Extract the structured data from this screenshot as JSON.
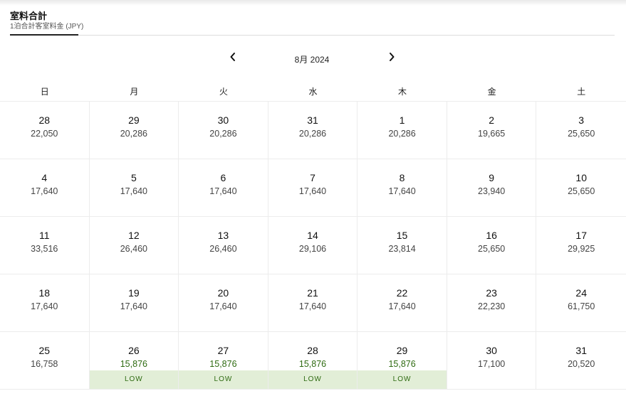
{
  "tab": {
    "title": "室料合計",
    "subtitle": "1泊合計客室料金 (JPY)"
  },
  "calendar": {
    "month_label": "8月 2024",
    "prev_icon": "chevron-left-icon",
    "next_icon": "chevron-right-icon",
    "weekdays": [
      "日",
      "月",
      "火",
      "水",
      "木",
      "金",
      "土"
    ],
    "low_label": "LOW",
    "low_color": "#2f6b12",
    "low_bg": "#e2eed7",
    "days": [
      {
        "day": "28",
        "price": "22,050"
      },
      {
        "day": "29",
        "price": "20,286"
      },
      {
        "day": "30",
        "price": "20,286"
      },
      {
        "day": "31",
        "price": "20,286"
      },
      {
        "day": "1",
        "price": "20,286"
      },
      {
        "day": "2",
        "price": "19,665"
      },
      {
        "day": "3",
        "price": "25,650"
      },
      {
        "day": "4",
        "price": "17,640"
      },
      {
        "day": "5",
        "price": "17,640"
      },
      {
        "day": "6",
        "price": "17,640"
      },
      {
        "day": "7",
        "price": "17,640"
      },
      {
        "day": "8",
        "price": "17,640"
      },
      {
        "day": "9",
        "price": "23,940"
      },
      {
        "day": "10",
        "price": "25,650"
      },
      {
        "day": "11",
        "price": "33,516"
      },
      {
        "day": "12",
        "price": "26,460"
      },
      {
        "day": "13",
        "price": "26,460"
      },
      {
        "day": "14",
        "price": "29,106"
      },
      {
        "day": "15",
        "price": "23,814"
      },
      {
        "day": "16",
        "price": "25,650"
      },
      {
        "day": "17",
        "price": "29,925"
      },
      {
        "day": "18",
        "price": "17,640"
      },
      {
        "day": "19",
        "price": "17,640"
      },
      {
        "day": "20",
        "price": "17,640"
      },
      {
        "day": "21",
        "price": "17,640"
      },
      {
        "day": "22",
        "price": "17,640"
      },
      {
        "day": "23",
        "price": "22,230"
      },
      {
        "day": "24",
        "price": "61,750"
      },
      {
        "day": "25",
        "price": "16,758"
      },
      {
        "day": "26",
        "price": "15,876",
        "low": true
      },
      {
        "day": "27",
        "price": "15,876",
        "low": true
      },
      {
        "day": "28",
        "price": "15,876",
        "low": true
      },
      {
        "day": "29",
        "price": "15,876",
        "low": true
      },
      {
        "day": "30",
        "price": "17,100"
      },
      {
        "day": "31",
        "price": "20,520"
      }
    ]
  }
}
